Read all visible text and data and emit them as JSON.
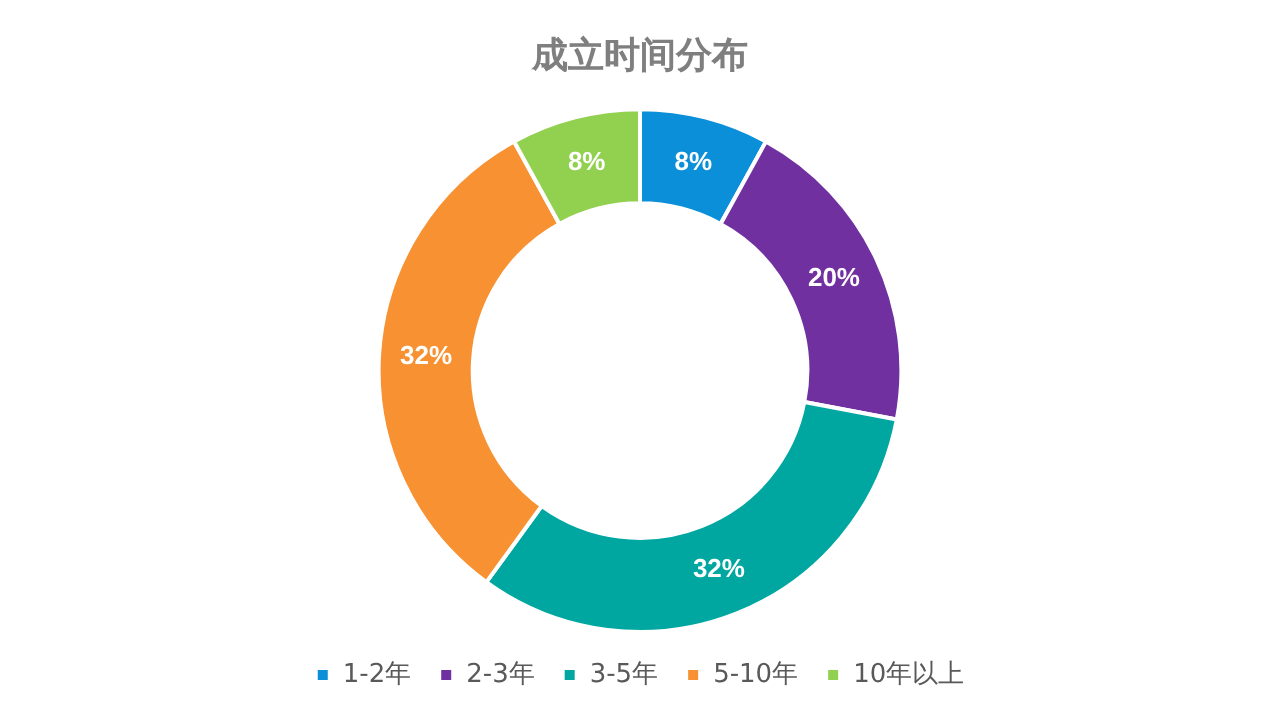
{
  "chart_data": {
    "type": "donut",
    "title": "成立时间分布",
    "categories": [
      "1-2年",
      "2-3年",
      "3-5年",
      "5-10年",
      "10年以上"
    ],
    "values": [
      8,
      20,
      32,
      32,
      8
    ],
    "colors": [
      "#0a8fd8",
      "#7030a0",
      "#00a6a0",
      "#f79132",
      "#92d050"
    ],
    "value_labels": [
      "8%",
      "20%",
      "32%",
      "32%",
      "8%"
    ],
    "legend": "bottom"
  }
}
